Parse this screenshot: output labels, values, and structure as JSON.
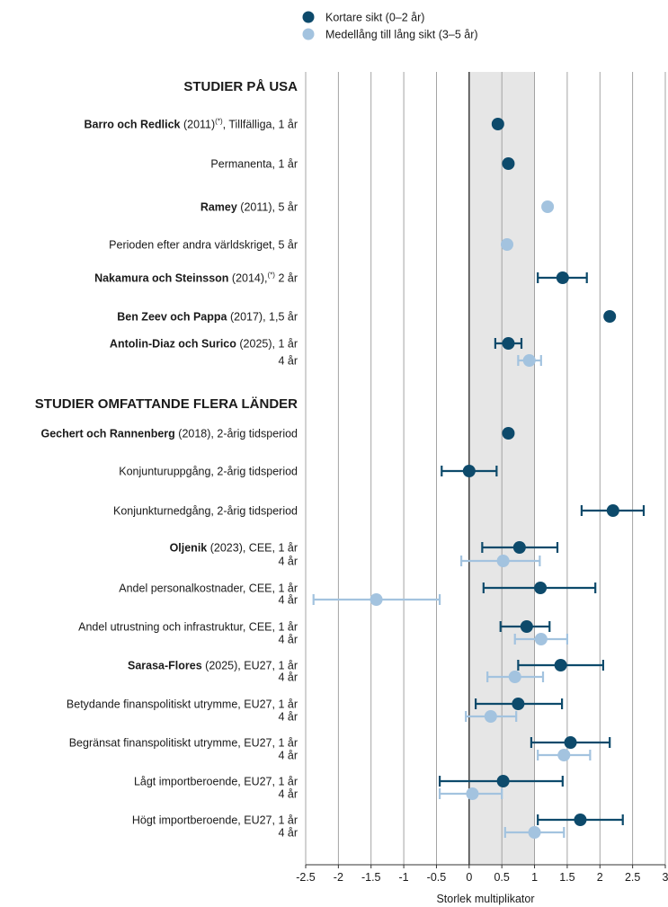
{
  "chart_data": {
    "type": "scatter",
    "subtype": "forest-plot",
    "title": "",
    "xlabel": "Storlek multiplikator",
    "ylabel": "",
    "xlim": [
      -2.5,
      3
    ],
    "xticks": [
      -2.5,
      -2,
      -1.5,
      -1,
      -0.5,
      0,
      0.5,
      1,
      1.5,
      2,
      2.5,
      3
    ],
    "xtick_labels": [
      "-2.5",
      "-2",
      "-1.5",
      "-1",
      "-0.5",
      "0",
      "0.5",
      "1",
      "1.5",
      "2",
      "2.5",
      "3"
    ],
    "grid": "vertical",
    "shaded_band": [
      0,
      1
    ],
    "legend_position": "top-center",
    "colors": {
      "short": "#0d4a6b",
      "long": "#a3c3df",
      "band": "#e6e6e6",
      "grid": "#9a9a9a"
    },
    "series": [
      {
        "key": "short",
        "name": "Kortare sikt (0–2 år)"
      },
      {
        "key": "long",
        "name": "Medellång till lång sikt (3–5 år)"
      }
    ],
    "sections": [
      {
        "title": "STUDIER PÅ USA",
        "row": 0
      },
      {
        "title": "STUDIER OMFATTANDE FLERA LÄNDER",
        "row": 12
      }
    ],
    "rows": [
      {
        "row": 1,
        "bold": "Barro och Redlick",
        "rest": " (2011)",
        "sup": "(*)",
        "after": ", Tillfälliga, 1 år",
        "series": "short",
        "value": 0.44
      },
      {
        "row": 2,
        "bold": "",
        "rest": "Permanenta, 1 år",
        "series": "short",
        "value": 0.6
      },
      {
        "row": 3,
        "bold": "Ramey",
        "rest": " (2011), 5 år",
        "series": "long",
        "value": 1.2
      },
      {
        "row": 4,
        "bold": "",
        "rest": "Perioden efter andra världskriget, 5 år",
        "series": "long",
        "value": 0.58
      },
      {
        "row": 5,
        "bold": "Nakamura och Steinsson",
        "rest": " (2014),",
        "sup": "(*)",
        "after": " 2 år",
        "series": "short",
        "value": 1.43,
        "ci": [
          1.05,
          1.8
        ]
      },
      {
        "row": 6,
        "bold": "Ben Zeev och Pappa",
        "rest": " (2017), 1,5 år",
        "series": "short",
        "value": 2.15
      },
      {
        "row": 7,
        "bold": "Antolin-Diaz och Surico",
        "rest": " (2025), 1 år",
        "series": "short",
        "value": 0.6,
        "ci": [
          0.4,
          0.8
        ]
      },
      {
        "row": 8,
        "bold": "",
        "rest": "4 år",
        "series": "long",
        "value": 0.92,
        "ci": [
          0.75,
          1.1
        ]
      },
      {
        "row": 13,
        "bold": "Gechert och Rannenberg",
        "rest": " (2018), 2-årig tidsperiod",
        "series": "short",
        "value": 0.6
      },
      {
        "row": 14,
        "bold": "",
        "rest": "Konjunturuppgång, 2-årig tidsperiod",
        "series": "short",
        "value": 0.0,
        "ci": [
          -0.42,
          0.42
        ]
      },
      {
        "row": 15,
        "bold": "",
        "rest": "Konjunkturnedgång, 2-årig tidsperiod",
        "series": "short",
        "value": 2.2,
        "ci": [
          1.72,
          2.67
        ]
      },
      {
        "row": 16,
        "bold": "Oljenik",
        "rest": " (2023), CEE, 1 år",
        "series": "short",
        "value": 0.77,
        "ci": [
          0.2,
          1.35
        ]
      },
      {
        "row": 17,
        "bold": "",
        "rest": "4 år",
        "series": "long",
        "value": 0.52,
        "ci": [
          -0.12,
          1.08
        ]
      },
      {
        "row": 18,
        "bold": "",
        "rest": "Andel personalkostnader, CEE, 1 år",
        "series": "short",
        "value": 1.09,
        "ci": [
          0.22,
          1.93
        ]
      },
      {
        "row": 19,
        "bold": "",
        "rest": "4 år",
        "series": "long",
        "value": -1.42,
        "ci": [
          -2.38,
          -0.45
        ]
      },
      {
        "row": 20,
        "bold": "",
        "rest": "Andel utrustning och infrastruktur, CEE, 1 år",
        "series": "short",
        "value": 0.88,
        "ci": [
          0.48,
          1.23
        ]
      },
      {
        "row": 21,
        "bold": "",
        "rest": "4 år",
        "series": "long",
        "value": 1.1,
        "ci": [
          0.7,
          1.5
        ]
      },
      {
        "row": 22,
        "bold": "Sarasa-Flores",
        "rest": " (2025),  EU27, 1 år",
        "series": "short",
        "value": 1.4,
        "ci": [
          0.75,
          2.05
        ]
      },
      {
        "row": 23,
        "bold": "",
        "rest": "4 år",
        "series": "long",
        "value": 0.7,
        "ci": [
          0.28,
          1.13
        ]
      },
      {
        "row": 24,
        "bold": "",
        "rest": "Betydande finanspolitiskt utrymme, EU27, 1 år",
        "series": "short",
        "value": 0.75,
        "ci": [
          0.1,
          1.42
        ]
      },
      {
        "row": 25,
        "bold": "",
        "rest": "4 år",
        "series": "long",
        "value": 0.33,
        "ci": [
          -0.05,
          0.72
        ]
      },
      {
        "row": 26,
        "bold": "",
        "rest": "Begränsat finanspolitiskt utrymme, EU27, 1 år",
        "series": "short",
        "value": 1.55,
        "ci": [
          0.95,
          2.15
        ]
      },
      {
        "row": 27,
        "bold": "",
        "rest": "4 år",
        "series": "long",
        "value": 1.45,
        "ci": [
          1.05,
          1.85
        ]
      },
      {
        "row": 28,
        "bold": "",
        "rest": "Lågt importberoende, EU27, 1 år",
        "series": "short",
        "value": 0.52,
        "ci": [
          -0.45,
          1.43
        ]
      },
      {
        "row": 29,
        "bold": "",
        "rest": "4 år",
        "series": "long",
        "value": 0.05,
        "ci": [
          -0.45,
          0.5
        ]
      },
      {
        "row": 30,
        "bold": "",
        "rest": "Högt importberoende, EU27, 1 år",
        "series": "short",
        "value": 1.7,
        "ci": [
          1.05,
          2.35
        ]
      },
      {
        "row": 31,
        "bold": "",
        "rest": "4 år",
        "series": "long",
        "value": 1.0,
        "ci": [
          0.55,
          1.45
        ]
      }
    ]
  }
}
